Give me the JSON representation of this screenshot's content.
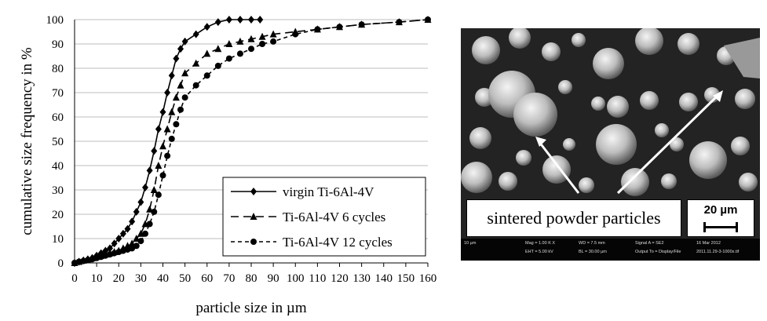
{
  "chart_data": {
    "type": "line",
    "xlabel": "particle size in µm",
    "ylabel": "cumulative size frequency in %",
    "xlim": [
      0,
      160
    ],
    "ylim": [
      0,
      100
    ],
    "xticks": [
      0,
      10,
      20,
      30,
      40,
      50,
      60,
      70,
      80,
      90,
      100,
      110,
      120,
      130,
      140,
      150,
      160
    ],
    "yticks": [
      0,
      10,
      20,
      30,
      40,
      50,
      60,
      70,
      80,
      90,
      100
    ],
    "grid": "horizontal",
    "legend_position": "bottom-right",
    "series": [
      {
        "name": "virgin Ti-6Al-4V",
        "style": "solid",
        "marker": "diamond",
        "x": [
          0,
          2,
          4,
          6,
          8,
          10,
          12,
          14,
          16,
          18,
          20,
          22,
          24,
          26,
          28,
          30,
          32,
          34,
          36,
          38,
          40,
          42,
          44,
          46,
          48,
          50,
          55,
          60,
          65,
          70,
          75,
          80,
          84
        ],
        "y": [
          0,
          0.5,
          1,
          1.5,
          2,
          3,
          4,
          5,
          6,
          8,
          10,
          12,
          14,
          17,
          21,
          25,
          31,
          38,
          46,
          55,
          62,
          70,
          77,
          84,
          88,
          91,
          94,
          97,
          99,
          100,
          100,
          100,
          100
        ]
      },
      {
        "name": "Ti-6Al-4V 6 cycles",
        "style": "dashed",
        "marker": "triangle",
        "x": [
          0,
          2,
          4,
          6,
          8,
          10,
          12,
          14,
          16,
          18,
          20,
          22,
          24,
          26,
          28,
          30,
          32,
          34,
          36,
          38,
          40,
          42,
          44,
          46,
          48,
          50,
          55,
          60,
          65,
          70,
          75,
          80,
          85,
          90,
          100,
          110,
          120,
          130,
          147,
          160
        ],
        "y": [
          0,
          0.5,
          1,
          1.5,
          2,
          2.5,
          3,
          3.5,
          4,
          4.5,
          5,
          6,
          7,
          8,
          10,
          12,
          16,
          22,
          30,
          40,
          48,
          55,
          62,
          68,
          73,
          78,
          82,
          86,
          88,
          90,
          91,
          92,
          93,
          94,
          95,
          96,
          97,
          98,
          99,
          100
        ]
      },
      {
        "name": "Ti-6Al-4V 12 cycles",
        "style": "dotted",
        "marker": "circle",
        "x": [
          0,
          2,
          4,
          6,
          8,
          10,
          12,
          14,
          16,
          18,
          20,
          22,
          24,
          26,
          28,
          30,
          32,
          34,
          36,
          38,
          40,
          42,
          44,
          46,
          48,
          50,
          55,
          60,
          65,
          70,
          75,
          80,
          85,
          90,
          100,
          110,
          120,
          130,
          147,
          160
        ],
        "y": [
          0,
          0.5,
          0.8,
          1.2,
          1.5,
          2,
          2.5,
          3,
          3.5,
          4,
          4.5,
          5,
          5.5,
          6,
          7,
          9,
          12,
          16,
          21,
          28,
          36,
          44,
          51,
          57,
          63,
          68,
          73,
          77,
          81,
          84,
          86,
          88,
          90,
          91,
          94,
          96,
          97,
          98,
          99,
          100
        ]
      }
    ]
  },
  "sem_image": {
    "caption": "sintered powder particles",
    "scale_label": "20 µm",
    "footer": {
      "f1": "10 µm",
      "f2": "Mag = 1.00 K X",
      "f3": "EHT = 5.00 kV",
      "f4": "WD = 7.5 mm",
      "f5": "BL = 30.00 µm",
      "f6": "Signal A = SE2",
      "f7": "Output To = Display/File",
      "f8": "16 Mar 2012",
      "f9": "2011.11.29-3-1000x.tif"
    }
  }
}
